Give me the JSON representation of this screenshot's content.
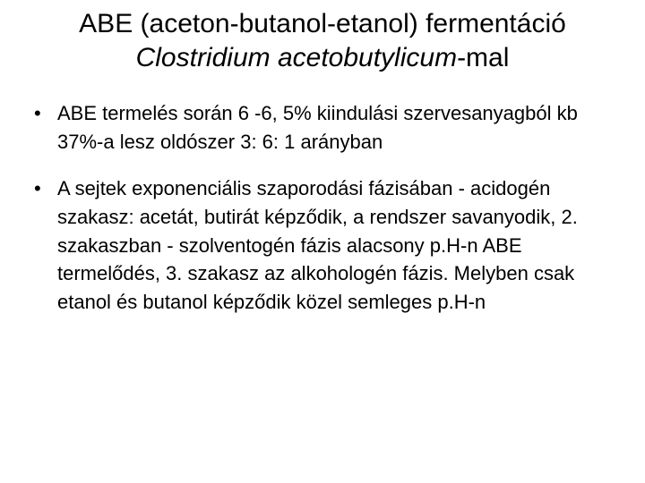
{
  "slide": {
    "background_color": "#ffffff",
    "text_color": "#000000",
    "title": {
      "line1": "ABE (aceton-butanol-etanol) fermentáció",
      "line2_italic": "Clostridium acetobutylicum",
      "line2_tail": "-mal",
      "fontsize": 30,
      "align": "center"
    },
    "bullets": [
      {
        "text": "ABE termelés során 6 -6, 5% kiindulási szervesanyagból kb 37%-a lesz oldószer 3: 6: 1 arányban"
      },
      {
        "text": "A sejtek exponenciális szaporodási fázisában - acidogén szakasz: acetát, butirát képződik, a rendszer savanyodik, 2. szakaszban - szolventogén fázis alacsony p.H-n ABE termelődés, 3. szakasz az alkohologén fázis. Melyben csak etanol és butanol képződik közel semleges p.H-n"
      }
    ],
    "body_fontsize": 22
  }
}
